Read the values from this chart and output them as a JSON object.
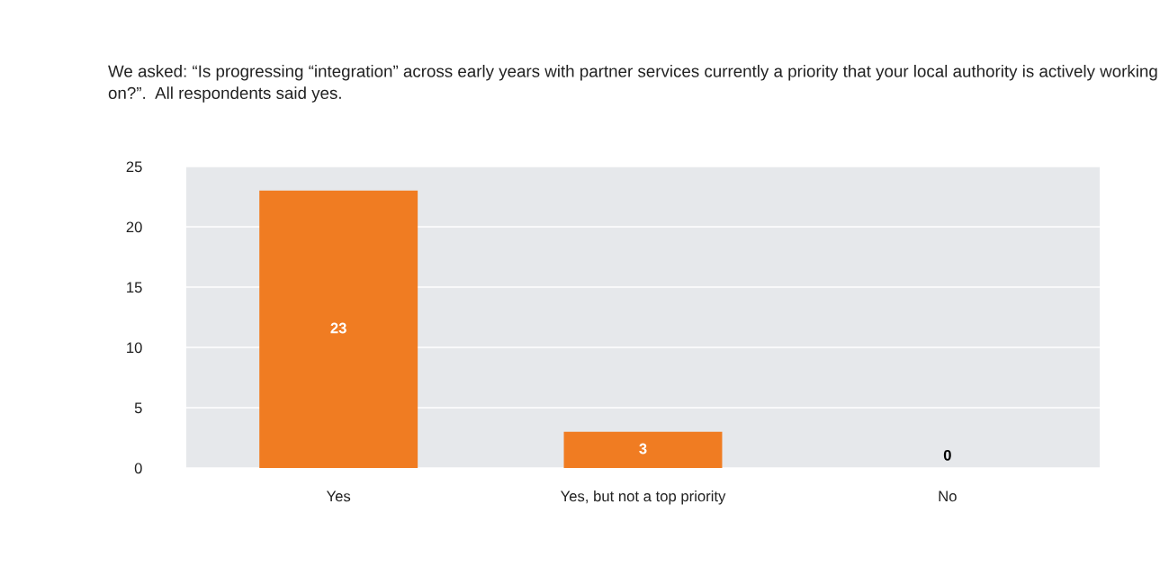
{
  "chart_data": {
    "type": "bar",
    "title": "We asked: “Is progressing “integration” across early years with partner services currently a priority that your local authority is actively working on?”.  All respondents said yes.",
    "categories": [
      "Yes",
      "Yes, but not a top priority",
      "No"
    ],
    "values": [
      23,
      3,
      0
    ],
    "color": "#f07c22",
    "ylim": [
      0,
      25
    ],
    "yticks": [
      0,
      5,
      10,
      15,
      20,
      25
    ],
    "grid": "y",
    "data_labels": true
  }
}
